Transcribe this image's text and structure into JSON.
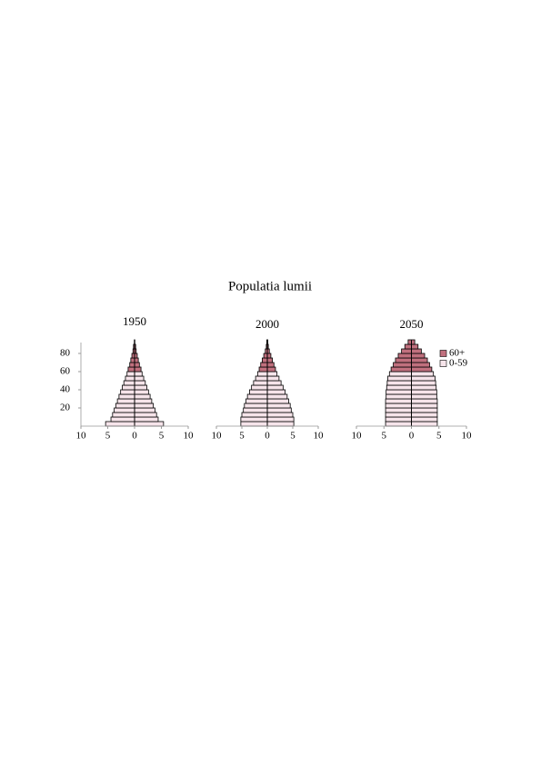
{
  "title": "Populatia lumii",
  "chart_data": [
    {
      "type": "pyramid",
      "title": "1950",
      "y": [
        0,
        5,
        10,
        15,
        20,
        25,
        30,
        35,
        40,
        45,
        50,
        55,
        60,
        65,
        70,
        75,
        80,
        85,
        90
      ],
      "series": [
        {
          "color": "#f6e4ea",
          "values": [
            5.4,
            4.4,
            4.1,
            3.8,
            3.5,
            3.2,
            2.9,
            2.6,
            2.3,
            2.0,
            1.7,
            1.4,
            null,
            null,
            null,
            null,
            null,
            null,
            null
          ]
        },
        {
          "color": "#c0707e",
          "values": [
            null,
            null,
            null,
            null,
            null,
            null,
            null,
            null,
            null,
            null,
            null,
            null,
            1.2,
            0.9,
            0.7,
            0.5,
            0.3,
            0.2,
            0.05
          ]
        }
      ],
      "xlim": [
        -10,
        10
      ],
      "xticks": [
        {
          "value": -10,
          "label": "10"
        },
        {
          "value": -5,
          "label": "5"
        },
        0,
        5,
        10
      ],
      "ylim": [
        0,
        92
      ],
      "yticks": [
        20,
        40,
        60,
        80
      ]
    },
    {
      "type": "pyramid",
      "title": "2000",
      "y": [
        0,
        5,
        10,
        15,
        20,
        25,
        30,
        35,
        40,
        45,
        50,
        55,
        60,
        65,
        70,
        75,
        80,
        85,
        90
      ],
      "series": [
        {
          "color": "#f6e4ea",
          "values": [
            5.2,
            5.2,
            5.0,
            4.7,
            4.5,
            4.2,
            3.9,
            3.5,
            3.1,
            2.7,
            2.3,
            1.9,
            null,
            null,
            null,
            null,
            null,
            null,
            null
          ]
        },
        {
          "color": "#c0707e",
          "values": [
            null,
            null,
            null,
            null,
            null,
            null,
            null,
            null,
            null,
            null,
            null,
            null,
            1.6,
            1.3,
            1.0,
            0.7,
            0.4,
            0.2,
            0.1
          ]
        }
      ],
      "xlim": [
        -10,
        10
      ],
      "xticks": [
        {
          "value": -10,
          "label": "10"
        },
        {
          "value": -5,
          "label": "5"
        },
        0,
        5,
        10
      ],
      "ylim": [
        0,
        92
      ]
    },
    {
      "type": "pyramid",
      "title": "2050",
      "y": [
        0,
        5,
        10,
        15,
        20,
        25,
        30,
        35,
        40,
        45,
        50,
        55,
        60,
        65,
        70,
        75,
        80,
        85,
        90
      ],
      "series": [
        {
          "name": "0-59",
          "color": "#f6e4ea",
          "values": [
            4.7,
            4.7,
            4.7,
            4.7,
            4.7,
            4.7,
            4.6,
            4.6,
            4.5,
            4.4,
            4.3,
            4.0,
            null,
            null,
            null,
            null,
            null,
            null,
            null
          ]
        },
        {
          "name": "60+",
          "color": "#c0707e",
          "values": [
            null,
            null,
            null,
            null,
            null,
            null,
            null,
            null,
            null,
            null,
            null,
            null,
            3.7,
            3.3,
            2.9,
            2.4,
            1.8,
            1.2,
            0.6
          ]
        }
      ],
      "xlim": [
        -10,
        10
      ],
      "xticks": [
        {
          "value": -10,
          "label": "10"
        },
        {
          "value": -5,
          "label": "5"
        },
        0,
        5,
        10
      ],
      "ylim": [
        0,
        92
      ],
      "legend": "right"
    }
  ]
}
